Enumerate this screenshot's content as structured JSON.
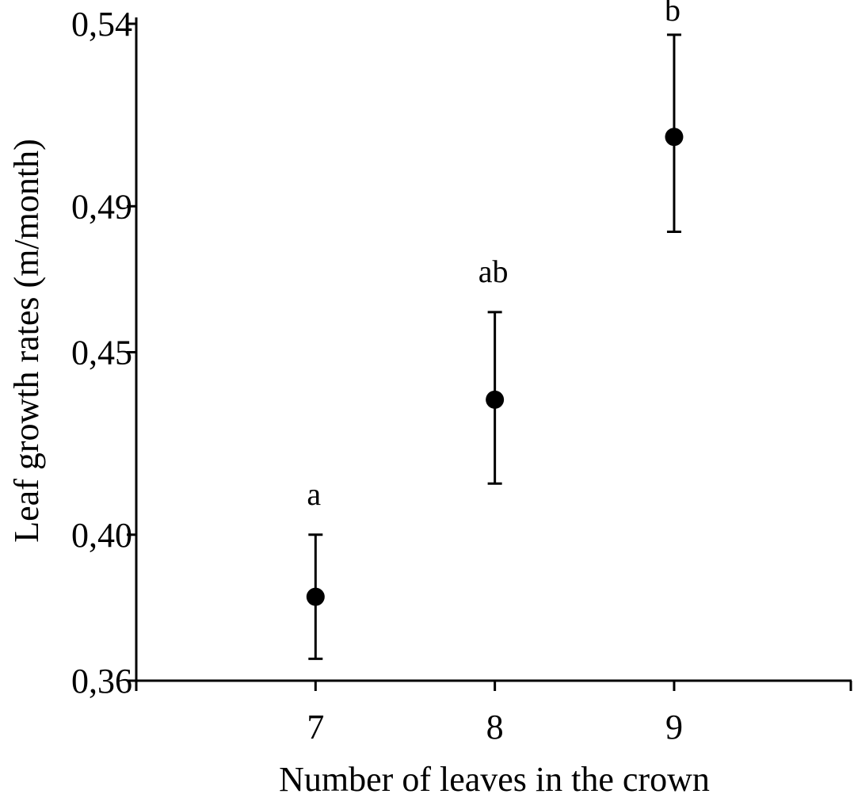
{
  "chart_data": {
    "type": "scatter",
    "title": "",
    "xlabel": "Number of leaves in the crown",
    "ylabel": "Leaf growth rates (m/month)",
    "x_ticks": [
      7,
      8,
      9
    ],
    "x_tick_labels": [
      "7",
      "8",
      "9"
    ],
    "xlim": [
      6,
      9.99
    ],
    "y_ticks": [
      0.36,
      0.4,
      0.45,
      0.49,
      0.54
    ],
    "y_tick_labels": [
      "0,36",
      "0,40",
      "0,45",
      "0,49",
      "0,54"
    ],
    "ylim": [
      0.36,
      0.54
    ],
    "grid": false,
    "points": [
      {
        "x": 7,
        "y": 0.383,
        "err_low": 0.366,
        "err_high": 0.4,
        "label": "a"
      },
      {
        "x": 8,
        "y": 0.437,
        "err_low": 0.414,
        "err_high": 0.461,
        "label": "ab"
      },
      {
        "x": 9,
        "y": 0.509,
        "err_low": 0.483,
        "err_high": 0.537,
        "label": "b"
      }
    ]
  }
}
